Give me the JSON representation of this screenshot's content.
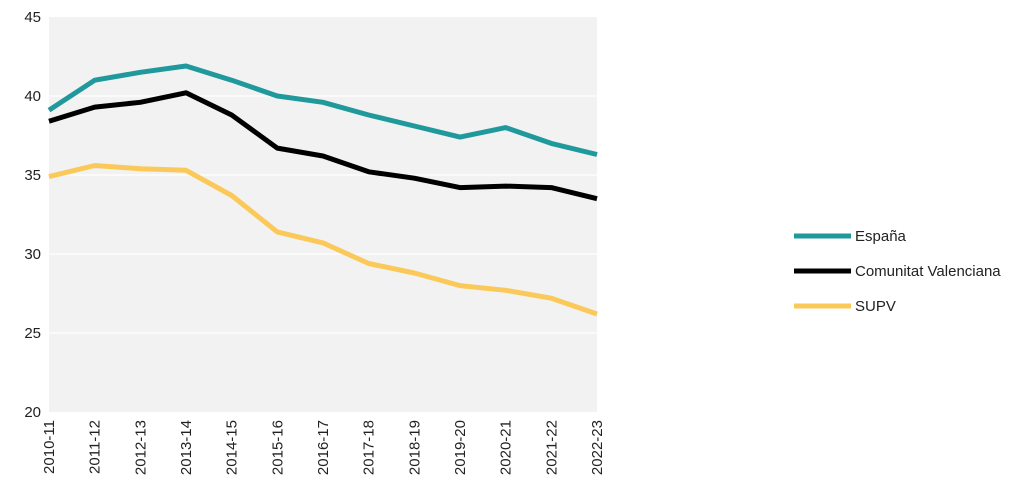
{
  "chart_data": {
    "type": "line",
    "categories": [
      "2010-11",
      "2011-12",
      "2012-13",
      "2013-14",
      "2014-15",
      "2015-16",
      "2016-17",
      "2017-18",
      "2018-19",
      "2019-20",
      "2020-21",
      "2021-22",
      "2022-23"
    ],
    "series": [
      {
        "name": "España",
        "color": "#20999c",
        "values": [
          39.1,
          41.0,
          41.5,
          41.9,
          41.0,
          40.0,
          39.6,
          38.8,
          38.1,
          37.4,
          38.0,
          37.0,
          36.3
        ]
      },
      {
        "name": "Comunitat Valenciana",
        "color": "#000000",
        "values": [
          38.4,
          39.3,
          39.6,
          40.2,
          38.8,
          36.7,
          36.2,
          35.2,
          34.8,
          34.2,
          34.3,
          34.2,
          33.5
        ]
      },
      {
        "name": "SUPV",
        "color": "#fbc95a",
        "values": [
          34.9,
          35.6,
          35.4,
          35.3,
          33.7,
          31.4,
          30.7,
          29.4,
          28.8,
          28.0,
          27.7,
          27.2,
          26.2
        ]
      }
    ],
    "title": "",
    "xlabel": "",
    "ylabel": "",
    "ylim": [
      20,
      45
    ],
    "yticks": [
      20,
      25,
      30,
      35,
      40,
      45
    ],
    "grid": true,
    "plot_background": "#f2f2f2",
    "grid_color": "#ffffff",
    "legend_position": "right"
  }
}
